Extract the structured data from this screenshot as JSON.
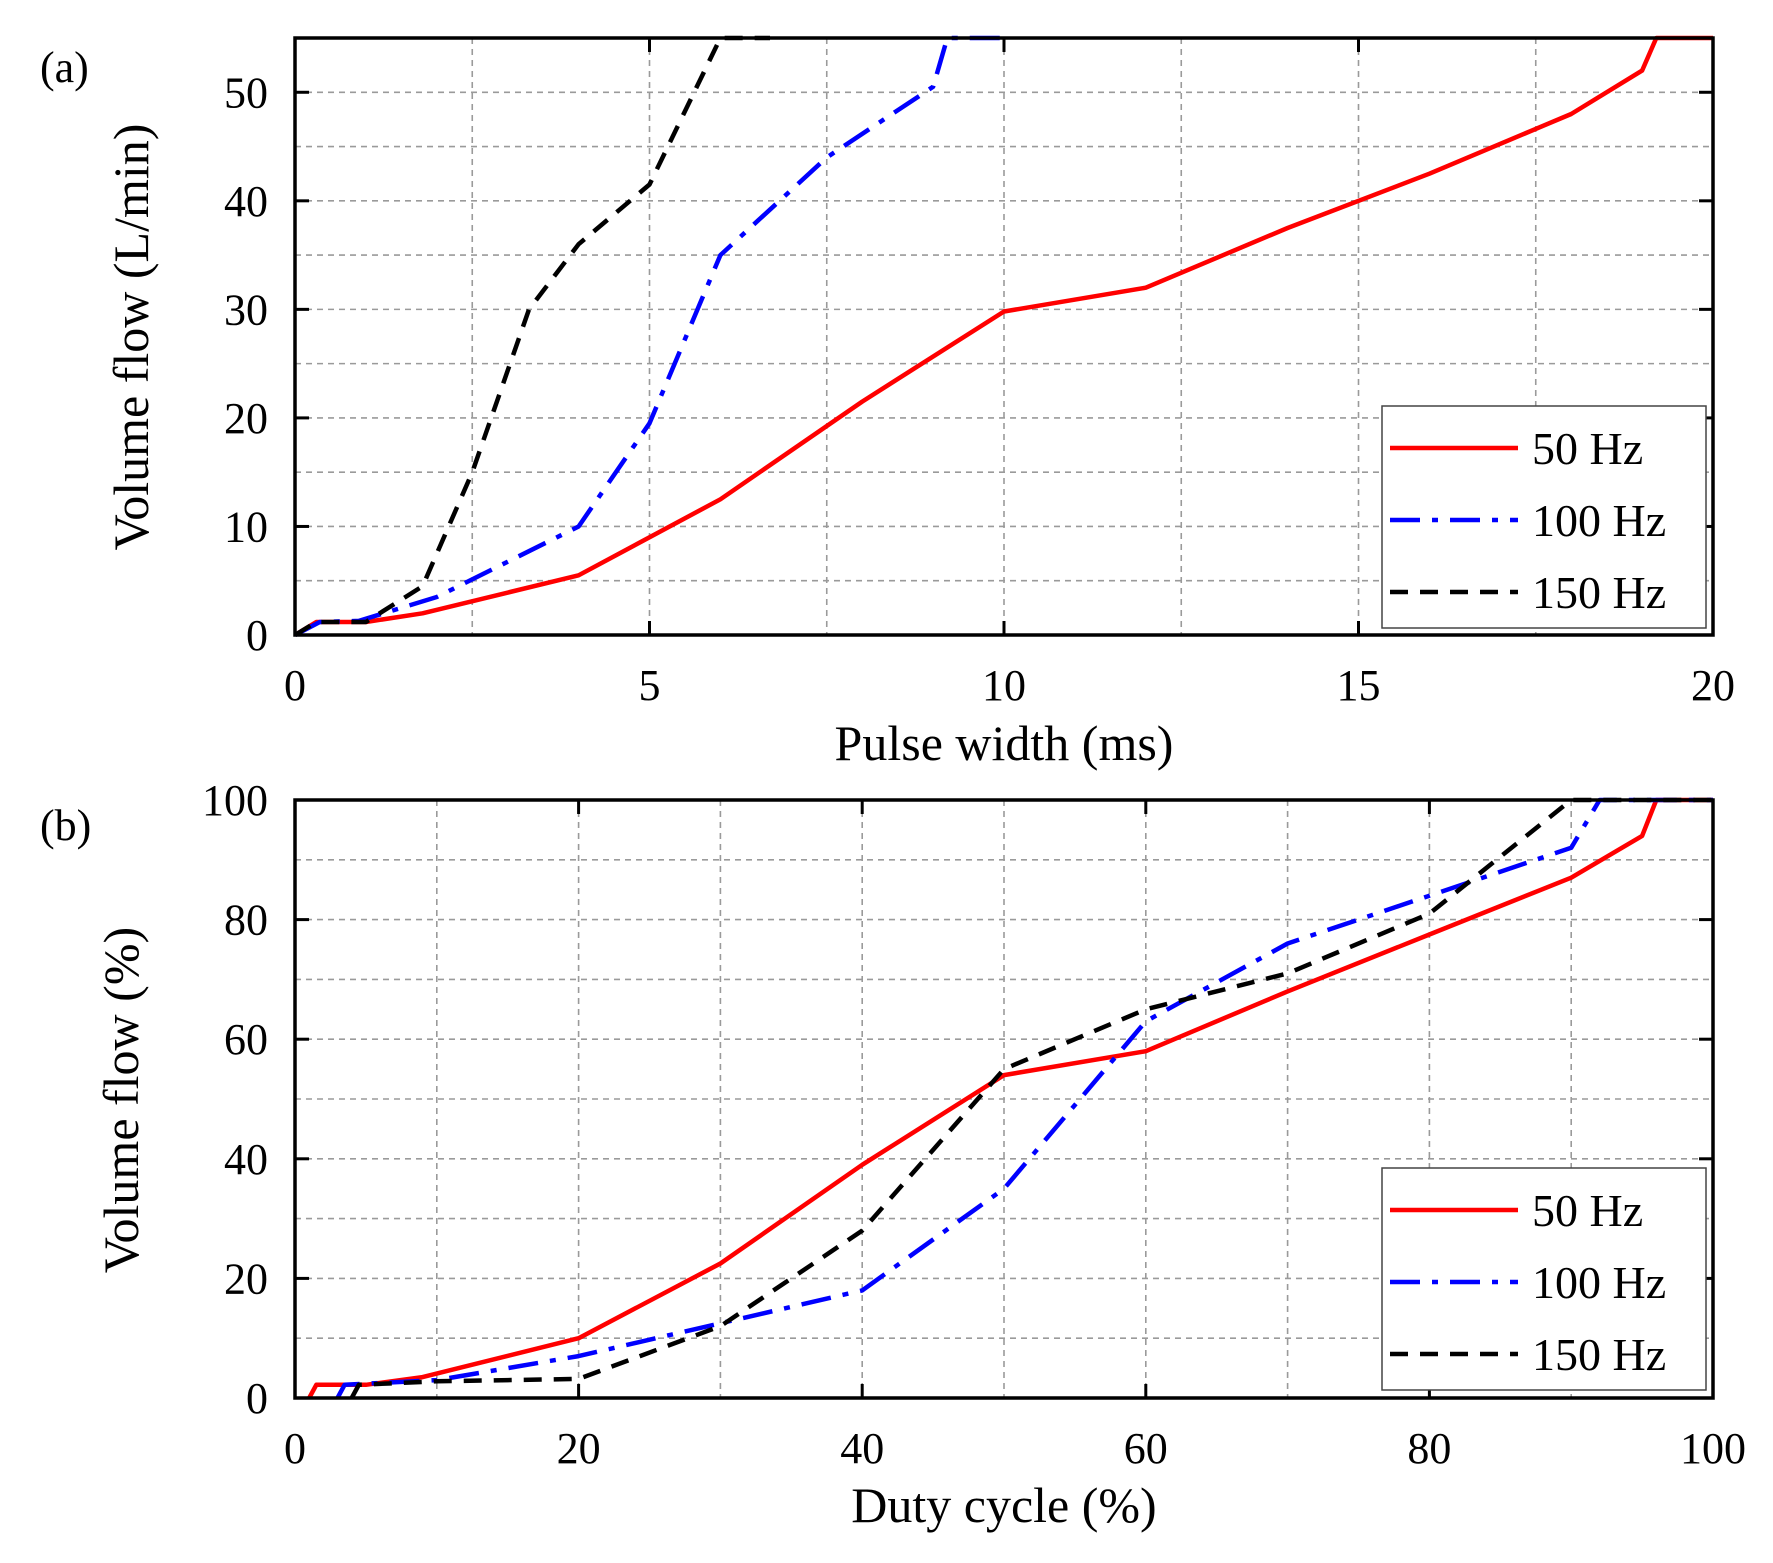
{
  "chart_data": [
    {
      "type": "line",
      "panel_label": "(a)",
      "xlabel": "Pulse width (ms)",
      "ylabel": "Volume flow (L/min)",
      "xlim": [
        0,
        20
      ],
      "ylim": [
        0,
        55
      ],
      "xticks": [
        0,
        5,
        10,
        15,
        20
      ],
      "yticks": [
        0,
        10,
        20,
        30,
        40,
        50
      ],
      "grid": true,
      "legend_position": "bottom-right",
      "series": [
        {
          "name": "50 Hz",
          "color": "#ff0000",
          "dash": "solid",
          "x": [
            0,
            0.3,
            1,
            1.8,
            4,
            6,
            8,
            10,
            12,
            14,
            16,
            18,
            19.0,
            19.2,
            20
          ],
          "y": [
            0,
            1.2,
            1.2,
            2,
            5.5,
            12.5,
            21.5,
            29.8,
            32,
            37.5,
            42.5,
            48,
            52,
            55,
            55
          ]
        },
        {
          "name": "100 Hz",
          "color": "#0000ff",
          "dash": "dashdot",
          "x": [
            0,
            0.35,
            0.9,
            2,
            4,
            5,
            6,
            7.5,
            9,
            9.2,
            10
          ],
          "y": [
            0,
            1.2,
            1.3,
            3.5,
            10,
            19.5,
            35,
            44,
            50.5,
            55,
            55
          ]
        },
        {
          "name": "150 Hz",
          "color": "#000000",
          "dash": "dashed",
          "x": [
            0,
            0.3,
            1.0,
            1.8,
            2.5,
            3.3,
            4,
            5,
            6,
            6.7
          ],
          "y": [
            0,
            1.2,
            1.2,
            4.5,
            15,
            30,
            36,
            41.5,
            55,
            55
          ]
        }
      ]
    },
    {
      "type": "line",
      "panel_label": "(b)",
      "xlabel": "Duty cycle (%)",
      "ylabel": "Volume flow (%)",
      "xlim": [
        0,
        100
      ],
      "ylim": [
        0,
        100
      ],
      "xticks": [
        0,
        20,
        40,
        60,
        80,
        100
      ],
      "yticks": [
        0,
        20,
        40,
        60,
        80,
        100
      ],
      "grid": true,
      "legend_position": "bottom-right",
      "series": [
        {
          "name": "50 Hz",
          "color": "#ff0000",
          "dash": "solid",
          "x": [
            1,
            1.5,
            5,
            9,
            20,
            30,
            40,
            50,
            60,
            70,
            80,
            90,
            95,
            96,
            100
          ],
          "y": [
            0,
            2.2,
            2.2,
            3.5,
            10,
            22.5,
            39,
            54,
            58,
            68,
            77.5,
            87,
            94,
            100,
            100
          ]
        },
        {
          "name": "100 Hz",
          "color": "#0000ff",
          "dash": "dashdot",
          "x": [
            3,
            3.5,
            10,
            20,
            30,
            40,
            50,
            60,
            70,
            80,
            90,
            92,
            100
          ],
          "y": [
            0,
            2.2,
            3,
            7,
            12.5,
            18,
            35,
            63,
            76,
            84,
            92,
            100,
            100
          ]
        },
        {
          "name": "150 Hz",
          "color": "#000000",
          "dash": "dashed",
          "x": [
            4,
            4.5,
            10,
            20,
            30,
            40,
            50,
            60,
            70,
            80,
            90,
            100
          ],
          "y": [
            0,
            2.2,
            2.8,
            3.2,
            12,
            28,
            55,
            65,
            71,
            81,
            100,
            100
          ]
        }
      ]
    }
  ]
}
